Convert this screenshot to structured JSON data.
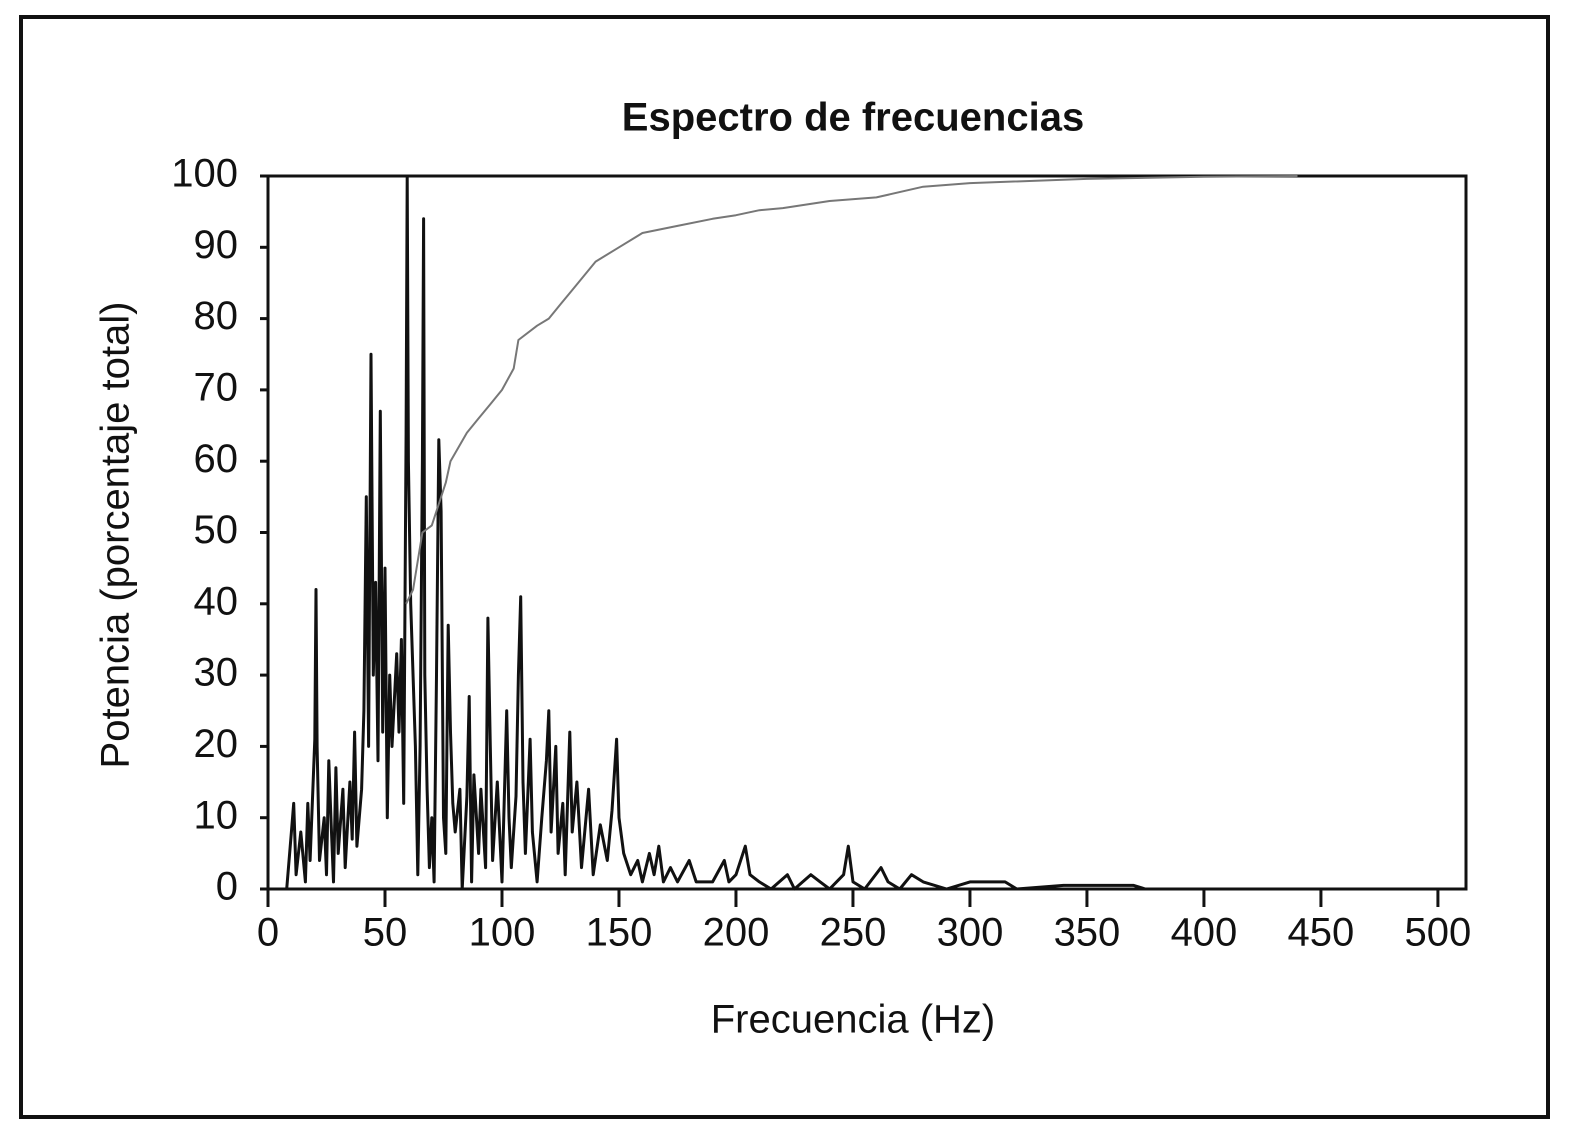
{
  "chart_data": {
    "type": "line",
    "title": "Espectro de frecuencias",
    "x_label": "Frecuencia (Hz)",
    "y_label": "Potencia (porcentaje total)",
    "xlim": [
      0,
      512
    ],
    "ylim": [
      0,
      100
    ],
    "xticks": [
      0,
      50,
      100,
      150,
      200,
      250,
      300,
      350,
      400,
      450,
      500
    ],
    "yticks": [
      0,
      10,
      20,
      30,
      40,
      50,
      60,
      70,
      80,
      90,
      100
    ],
    "series": [
      {
        "color": "#111111",
        "x": [
          0,
          8,
          10,
          11,
          12,
          14,
          16,
          17,
          18,
          20,
          20.5,
          21,
          22,
          24,
          25,
          26,
          27,
          28,
          29,
          30,
          32,
          33,
          35,
          36,
          37,
          38,
          40,
          41,
          42,
          43,
          44,
          45,
          46,
          47,
          48,
          49,
          50,
          51,
          52,
          53,
          55,
          56,
          57,
          58,
          59,
          59.5,
          60,
          61,
          63,
          64,
          65,
          66,
          66.5,
          67,
          68,
          69,
          70,
          71,
          72,
          73,
          74,
          75,
          76,
          77,
          78,
          79,
          80,
          82,
          83,
          85,
          86,
          87,
          88,
          90,
          91,
          93,
          94,
          95,
          96,
          98,
          100,
          102,
          103,
          104,
          106,
          107,
          108,
          109,
          110,
          112,
          113,
          115,
          117,
          119,
          120,
          121,
          123,
          124,
          126,
          127,
          129,
          130,
          132,
          134,
          137,
          139,
          142,
          145,
          147,
          149,
          150,
          152,
          155,
          158,
          160,
          163,
          165,
          167,
          169,
          172,
          175,
          180,
          183,
          190,
          195,
          197,
          200,
          204,
          206,
          210,
          215,
          222,
          225,
          232,
          236,
          240,
          246,
          248,
          250,
          255,
          262,
          265,
          270,
          275,
          280,
          290,
          300,
          315,
          320,
          340,
          360,
          370,
          375
        ],
        "values": [
          0,
          0,
          8,
          12,
          2,
          8,
          1,
          12,
          4,
          21,
          42,
          20,
          4,
          10,
          2,
          18,
          9,
          1,
          17,
          5,
          14,
          3,
          15,
          7,
          22,
          6,
          14,
          25,
          55,
          20,
          75,
          30,
          43,
          18,
          67,
          22,
          45,
          10,
          30,
          20,
          33,
          22,
          35,
          12,
          64,
          100,
          60,
          40,
          20,
          2,
          20,
          60,
          94,
          30,
          14,
          3,
          10,
          1,
          30,
          63,
          53,
          10,
          5,
          37,
          22,
          12,
          8,
          14,
          0,
          13,
          27,
          1,
          16,
          5,
          14,
          3,
          38,
          20,
          4,
          15,
          1,
          25,
          10,
          3,
          13,
          30,
          41,
          15,
          5,
          21,
          8,
          1,
          10,
          18,
          25,
          8,
          20,
          5,
          12,
          2,
          22,
          8,
          15,
          3,
          14,
          2,
          9,
          4,
          11,
          21,
          10,
          5,
          2,
          4,
          1,
          5,
          2,
          6,
          1,
          3,
          1,
          4,
          1,
          1,
          4,
          1,
          2,
          6,
          2,
          1,
          0,
          2,
          0,
          2,
          1,
          0,
          2,
          6,
          1,
          0,
          3,
          1,
          0,
          2,
          1,
          0,
          1,
          1,
          0,
          0.5,
          0.5,
          0.5,
          0
        ]
      },
      {
        "color": "#777777",
        "x": [
          59,
          62,
          66,
          70,
          73,
          76,
          78,
          85,
          90,
          95,
          100,
          105,
          107,
          115,
          120,
          125,
          130,
          140,
          150,
          160,
          175,
          190,
          200,
          210,
          220,
          240,
          260,
          280,
          300,
          350,
          400,
          440
        ],
        "values": [
          40,
          42,
          50,
          51,
          54,
          57,
          60,
          64,
          66,
          68,
          70,
          73,
          77,
          79,
          80,
          82,
          84,
          88,
          90,
          92,
          93,
          94,
          94.5,
          95.2,
          95.5,
          96.5,
          97,
          98.5,
          99,
          99.6,
          99.9,
          100
        ]
      }
    ]
  }
}
